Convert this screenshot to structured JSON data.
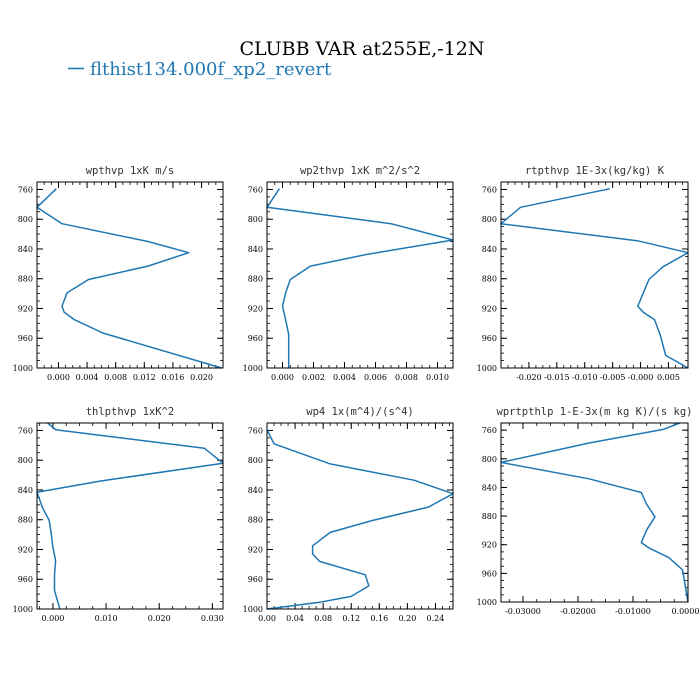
{
  "figure": {
    "title": "CLUBB VAR at255E,-12N",
    "legend": {
      "label": "flthist134.000f_xp2_revert",
      "color": "#1f77b4"
    }
  },
  "chart_data": [
    {
      "type": "line",
      "title": "wpthvp  1xK m/s",
      "xlim": [
        -0.003,
        0.023
      ],
      "xticks": [
        0.0,
        0.004,
        0.008,
        0.012,
        0.016,
        0.02
      ],
      "xticklabels": [
        "0.000",
        "0.004",
        "0.008",
        "0.012",
        "0.016",
        "0.020"
      ],
      "ylim": [
        1000,
        750
      ],
      "yticks": [
        760,
        800,
        840,
        880,
        920,
        960,
        1000
      ],
      "series": [
        {
          "color": "#1f77b4",
          "x": [
            -0.0003,
            -0.003,
            0.0005,
            0.0125,
            0.0182,
            0.0125,
            0.0042,
            0.0012,
            0.0005,
            0.0008,
            0.0022,
            0.0062,
            0.0228
          ],
          "y": [
            759,
            784,
            806,
            830,
            845,
            863,
            881,
            899,
            917,
            925,
            935,
            953,
            1000
          ]
        }
      ]
    },
    {
      "type": "line",
      "title": "wp2thvp  1xK m^2/s^2",
      "xlim": [
        -0.001,
        0.011
      ],
      "xticks": [
        0.0,
        0.002,
        0.004,
        0.006,
        0.008,
        0.01
      ],
      "xticklabels": [
        "0.000",
        "0.002",
        "0.004",
        "0.006",
        "0.008",
        "0.010"
      ],
      "ylim": [
        1000,
        750
      ],
      "yticks": [
        760,
        800,
        840,
        880,
        920,
        960,
        1000
      ],
      "series": [
        {
          "color": "#1f77b4",
          "x": [
            -0.0002,
            -0.001,
            0.007,
            0.011,
            0.0055,
            0.0018,
            0.0005,
            0.0002,
            0.0,
            0.0002,
            0.0004,
            0.0004
          ],
          "y": [
            759,
            784,
            806,
            828,
            847,
            863,
            881,
            899,
            917,
            935,
            955,
            1000
          ]
        }
      ]
    },
    {
      "type": "line",
      "title": "rtpthvp  1E-3x(kg/kg) K",
      "xlim": [
        -0.025,
        0.0085
      ],
      "xticks": [
        -0.02,
        -0.015,
        -0.01,
        -0.005,
        0.0,
        0.005
      ],
      "xticklabels": [
        "-0.020",
        "-0.015",
        "-0.010",
        "-0.005",
        "-0.000",
        "0.005"
      ],
      "ylim": [
        1000,
        750
      ],
      "yticks": [
        760,
        800,
        840,
        880,
        920,
        960,
        1000
      ],
      "series": [
        {
          "color": "#1f77b4",
          "x": [
            -0.0055,
            -0.0215,
            -0.025,
            -0.0005,
            0.0085,
            0.004,
            0.0015,
            0.0005,
            -0.0005,
            0.0005,
            0.0025,
            0.0035,
            0.0045,
            0.0085
          ],
          "y": [
            759,
            784,
            806,
            829,
            845,
            864,
            881,
            899,
            917,
            925,
            935,
            955,
            983,
            1000
          ]
        }
      ]
    },
    {
      "type": "line",
      "title": "thlpthvp  1xK^2",
      "xlim": [
        -0.003,
        0.032
      ],
      "xticks": [
        0.0,
        0.01,
        0.02,
        0.03
      ],
      "xticklabels": [
        "0.000",
        "0.010",
        "0.020",
        "0.030"
      ],
      "ylim": [
        1000,
        750
      ],
      "yticks": [
        760,
        800,
        840,
        880,
        920,
        960,
        1000
      ],
      "series": [
        {
          "color": "#1f77b4",
          "x": [
            -0.001,
            0.0005,
            0.0285,
            0.032,
            0.009,
            -0.003,
            -0.002,
            -0.0007,
            -0.0003,
            0.0,
            0.0005,
            0.0003,
            0.0003,
            0.0013
          ],
          "y": [
            750,
            759,
            784,
            804,
            828,
            843,
            863,
            881,
            899,
            917,
            935,
            955,
            975,
            1000
          ]
        }
      ]
    },
    {
      "type": "line",
      "title": "wp4  1x(m^4)/(s^4)",
      "xlim": [
        0.0,
        0.265
      ],
      "xticks": [
        0.0,
        0.04,
        0.08,
        0.12,
        0.16,
        0.2,
        0.24
      ],
      "xticklabels": [
        "0.00",
        "0.04",
        "0.08",
        "0.12",
        "0.16",
        "0.20",
        "0.24"
      ],
      "ylim": [
        1000,
        750
      ],
      "yticks": [
        760,
        800,
        840,
        880,
        920,
        960,
        1000
      ],
      "series": [
        {
          "color": "#1f77b4",
          "x": [
            0.0,
            0.01,
            0.09,
            0.21,
            0.265,
            0.23,
            0.15,
            0.09,
            0.065,
            0.065,
            0.075,
            0.14,
            0.145,
            0.12,
            0.075,
            0.0
          ],
          "y": [
            759,
            778,
            805,
            827,
            845,
            863,
            881,
            897,
            915,
            926,
            936,
            954,
            969,
            983,
            991,
            1000
          ]
        }
      ]
    },
    {
      "type": "line",
      "title": "wprtpthlp  1-E-3x(m kg K)/(s kg)",
      "xlim": [
        -0.034,
        0.0
      ],
      "xticks": [
        -0.03,
        -0.02,
        -0.01,
        0.0
      ],
      "xticklabels": [
        "-0.03000",
        "-0.02000",
        "-0.01000",
        "0.00000"
      ],
      "ylim": [
        1000,
        750
      ],
      "yticks": [
        760,
        800,
        840,
        880,
        920,
        960,
        1000
      ],
      "series": [
        {
          "color": "#1f77b4",
          "x": [
            -0.0015,
            -0.0045,
            -0.018,
            -0.034,
            -0.018,
            -0.0085,
            -0.0075,
            -0.006,
            -0.0075,
            -0.0085,
            -0.007,
            -0.0035,
            -0.001,
            0.0
          ],
          "y": [
            750,
            759,
            778,
            805,
            828,
            847,
            864,
            881,
            899,
            917,
            925,
            938,
            955,
            1000
          ]
        }
      ]
    }
  ]
}
